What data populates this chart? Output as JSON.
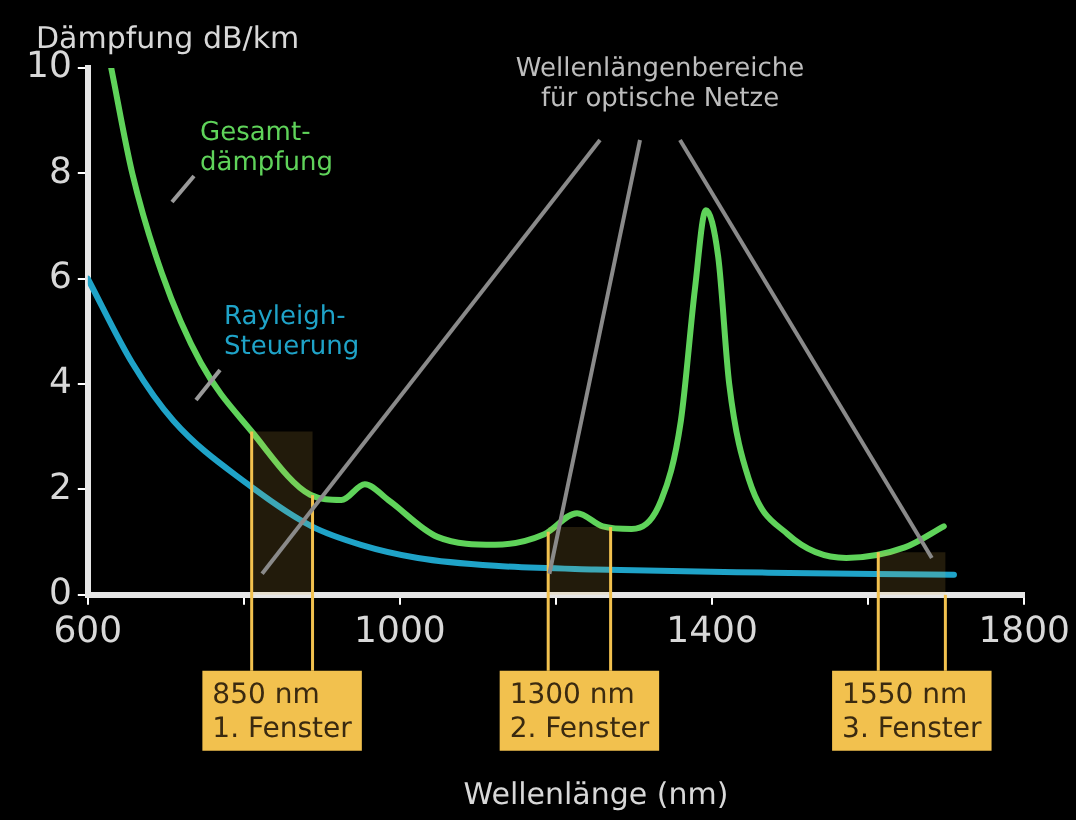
{
  "chart_data": {
    "type": "line",
    "ylabel": "Dämpfung dB/km",
    "xlabel": "Wellenlänge (nm)",
    "xlim": [
      600,
      1800
    ],
    "xticks": [
      600,
      {
        "value": 800,
        "label": null
      },
      1000,
      {
        "value": 1200,
        "label": null
      },
      1400,
      {
        "value": 1600,
        "label": null
      },
      1800
    ],
    "ylim": [
      0,
      10
    ],
    "yticks": [
      0,
      2,
      4,
      6,
      8,
      10
    ],
    "series": [
      {
        "name": "Gesamt-\ndämpfung",
        "color": "#5fd35a",
        "x": [
          630,
          657,
          695,
          745,
          810,
          885,
          925,
          955,
          985,
          1048,
          1122,
          1185,
          1227,
          1260,
          1297,
          1335,
          1360,
          1378,
          1392,
          1408,
          1422,
          1447,
          1497,
          1572,
          1647,
          1697
        ],
        "values": [
          10,
          8.0,
          6.1,
          4.4,
          3.1,
          1.9,
          1.8,
          2.1,
          1.8,
          1.1,
          0.95,
          1.15,
          1.55,
          1.3,
          1.25,
          1.8,
          3.3,
          5.8,
          7.3,
          6.4,
          4.0,
          2.2,
          1.15,
          0.7,
          0.9,
          1.3
        ]
      },
      {
        "name": "Rayleigh-\nSteuerung",
        "color": "#1fa3c8",
        "x": [
          600,
          657,
          710,
          805,
          887,
          950,
          1023,
          1122,
          1250,
          1472,
          1710
        ],
        "values": [
          6.0,
          4.4,
          3.3,
          2.1,
          1.3,
          0.95,
          0.7,
          0.55,
          0.48,
          0.42,
          0.38
        ]
      }
    ],
    "bands": [
      {
        "axis": "x",
        "from": 810,
        "to": 888,
        "label": "850 nm\n1. Fenster",
        "color": "#f2c14e"
      },
      {
        "axis": "x",
        "from": 1190,
        "to": 1270,
        "label": "1300 nm\n2. Fenster",
        "color": "#f2c14e"
      },
      {
        "axis": "x",
        "from": 1613,
        "to": 1699,
        "label": "1550 nm\n3. Fenster",
        "color": "#f2c14e"
      }
    ],
    "annotations": [
      "Wellenlängenbereiche\nfür optische Netze"
    ],
    "grid": false,
    "legend": false,
    "marker": "none",
    "line_style": "solid"
  }
}
